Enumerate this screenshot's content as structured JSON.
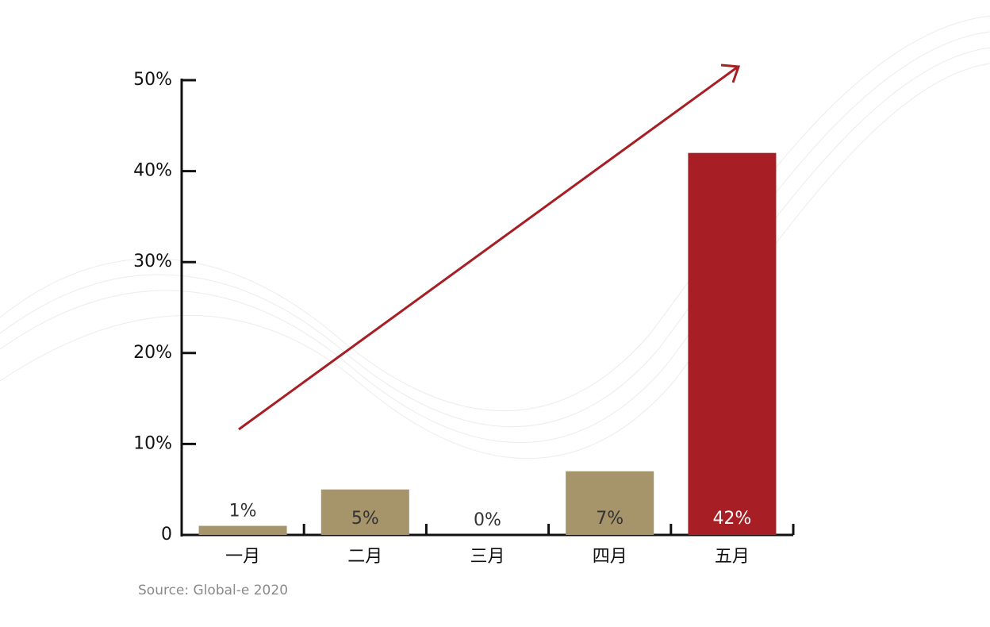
{
  "chart_data": {
    "type": "bar",
    "categories": [
      "一月",
      "二月",
      "三月",
      "四月",
      "五月"
    ],
    "values": [
      1,
      5,
      0,
      7,
      42
    ],
    "value_labels": [
      "1%",
      "5%",
      "0%",
      "7%",
      "42%"
    ],
    "colors": [
      "#a6956a",
      "#a6956a",
      "#a6956a",
      "#a6956a",
      "#a71e25"
    ],
    "ylim": [
      0,
      50
    ],
    "yticks": [
      0,
      {
        "value": 10,
        "label": "10%"
      },
      {
        "value": 20,
        "label": "20%"
      },
      {
        "value": 30,
        "label": "30%"
      },
      {
        "value": 40,
        "label": "40%"
      },
      {
        "value": 50,
        "label": "50%"
      }
    ],
    "source": "Source: Global-e 2020"
  }
}
